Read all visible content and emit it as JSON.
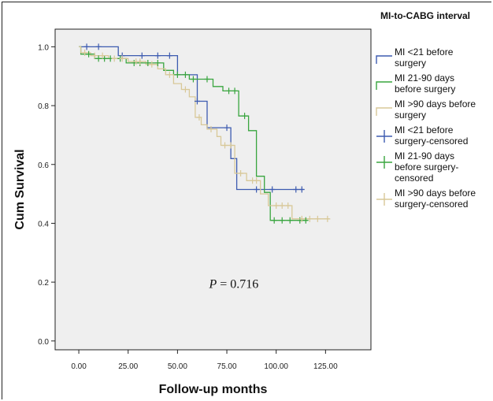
{
  "chart_data": {
    "type": "line",
    "subtype": "kaplan-meier",
    "title": "",
    "xlabel": "Follow-up months",
    "ylabel": "Cum Survival",
    "xlim": [
      -12,
      148
    ],
    "ylim": [
      -0.03,
      1.06
    ],
    "x_ticks": [
      0,
      25,
      50,
      75,
      100,
      125
    ],
    "x_tick_labels": [
      "0.00",
      "25.00",
      "50.00",
      "75.00",
      "100.00",
      "125.00"
    ],
    "y_ticks": [
      0.0,
      0.2,
      0.4,
      0.6,
      0.8,
      1.0
    ],
    "y_tick_labels": [
      "0.0",
      "0.2",
      "0.4",
      "0.6",
      "0.8",
      "1.0"
    ],
    "grid": false,
    "plot_background": "#efefef",
    "legend_title": "MI-to-CABG interval",
    "legend_position": "right",
    "annotation": {
      "prefix": "P",
      "text": " = 0.716"
    },
    "series": [
      {
        "name": "MI <21 before surgery",
        "color": "#3d5bb0",
        "steps": [
          [
            0,
            1.0
          ],
          [
            20,
            1.0
          ],
          [
            20,
            0.97
          ],
          [
            50,
            0.97
          ],
          [
            50,
            0.905
          ],
          [
            60,
            0.905
          ],
          [
            60,
            0.815
          ],
          [
            65,
            0.815
          ],
          [
            65,
            0.725
          ],
          [
            77,
            0.725
          ],
          [
            77,
            0.62
          ],
          [
            80,
            0.62
          ],
          [
            80,
            0.515
          ],
          [
            114,
            0.515
          ]
        ],
        "censored": [
          [
            4,
            1.0
          ],
          [
            10,
            1.0
          ],
          [
            22,
            0.97
          ],
          [
            32,
            0.97
          ],
          [
            40,
            0.97
          ],
          [
            46,
            0.97
          ],
          [
            60,
            0.815
          ],
          [
            75,
            0.725
          ],
          [
            90,
            0.515
          ],
          [
            98,
            0.515
          ],
          [
            110,
            0.515
          ],
          [
            113,
            0.515
          ]
        ]
      },
      {
        "name": "MI 21-90 days before surgery",
        "color": "#39a53f",
        "steps": [
          [
            0,
            1.0
          ],
          [
            1,
            1.0
          ],
          [
            1,
            0.975
          ],
          [
            8,
            0.975
          ],
          [
            8,
            0.96
          ],
          [
            24,
            0.96
          ],
          [
            24,
            0.945
          ],
          [
            43,
            0.945
          ],
          [
            43,
            0.92
          ],
          [
            48,
            0.92
          ],
          [
            48,
            0.905
          ],
          [
            56,
            0.905
          ],
          [
            56,
            0.89
          ],
          [
            68,
            0.89
          ],
          [
            68,
            0.865
          ],
          [
            73,
            0.865
          ],
          [
            73,
            0.85
          ],
          [
            81,
            0.85
          ],
          [
            81,
            0.765
          ],
          [
            86,
            0.765
          ],
          [
            86,
            0.715
          ],
          [
            90,
            0.715
          ],
          [
            90,
            0.56
          ],
          [
            94,
            0.56
          ],
          [
            94,
            0.505
          ],
          [
            97,
            0.505
          ],
          [
            97,
            0.41
          ],
          [
            116,
            0.41
          ]
        ],
        "censored": [
          [
            5,
            0.975
          ],
          [
            10,
            0.96
          ],
          [
            13,
            0.96
          ],
          [
            16,
            0.96
          ],
          [
            21,
            0.96
          ],
          [
            28,
            0.945
          ],
          [
            31,
            0.945
          ],
          [
            35,
            0.945
          ],
          [
            40,
            0.945
          ],
          [
            50,
            0.905
          ],
          [
            54,
            0.905
          ],
          [
            58,
            0.89
          ],
          [
            65,
            0.89
          ],
          [
            76,
            0.85
          ],
          [
            79,
            0.85
          ],
          [
            84,
            0.765
          ],
          [
            99,
            0.41
          ],
          [
            103,
            0.41
          ],
          [
            107,
            0.41
          ],
          [
            112,
            0.41
          ],
          [
            115,
            0.41
          ]
        ]
      },
      {
        "name": "MI >90 days before surgery",
        "color": "#d8c898",
        "steps": [
          [
            0,
            1.0
          ],
          [
            1,
            1.0
          ],
          [
            1,
            0.98
          ],
          [
            6,
            0.98
          ],
          [
            6,
            0.97
          ],
          [
            15,
            0.97
          ],
          [
            15,
            0.96
          ],
          [
            25,
            0.96
          ],
          [
            25,
            0.95
          ],
          [
            34,
            0.95
          ],
          [
            34,
            0.94
          ],
          [
            40,
            0.94
          ],
          [
            40,
            0.925
          ],
          [
            44,
            0.925
          ],
          [
            44,
            0.905
          ],
          [
            48,
            0.905
          ],
          [
            48,
            0.875
          ],
          [
            52,
            0.875
          ],
          [
            52,
            0.855
          ],
          [
            56,
            0.855
          ],
          [
            56,
            0.83
          ],
          [
            59,
            0.83
          ],
          [
            59,
            0.76
          ],
          [
            62,
            0.76
          ],
          [
            62,
            0.735
          ],
          [
            65,
            0.735
          ],
          [
            65,
            0.72
          ],
          [
            70,
            0.72
          ],
          [
            70,
            0.695
          ],
          [
            72,
            0.695
          ],
          [
            72,
            0.665
          ],
          [
            79,
            0.665
          ],
          [
            79,
            0.57
          ],
          [
            85,
            0.57
          ],
          [
            85,
            0.545
          ],
          [
            92,
            0.545
          ],
          [
            92,
            0.5
          ],
          [
            96,
            0.5
          ],
          [
            96,
            0.46
          ],
          [
            108,
            0.46
          ],
          [
            108,
            0.415
          ],
          [
            127,
            0.415
          ]
        ],
        "censored": [
          [
            3,
            0.98
          ],
          [
            8,
            0.97
          ],
          [
            12,
            0.97
          ],
          [
            18,
            0.96
          ],
          [
            22,
            0.96
          ],
          [
            29,
            0.95
          ],
          [
            31,
            0.95
          ],
          [
            37,
            0.94
          ],
          [
            46,
            0.905
          ],
          [
            54,
            0.855
          ],
          [
            61,
            0.76
          ],
          [
            67,
            0.72
          ],
          [
            74,
            0.665
          ],
          [
            77,
            0.665
          ],
          [
            82,
            0.57
          ],
          [
            88,
            0.545
          ],
          [
            90,
            0.545
          ],
          [
            100,
            0.46
          ],
          [
            103,
            0.46
          ],
          [
            106,
            0.46
          ],
          [
            113,
            0.415
          ],
          [
            117,
            0.415
          ],
          [
            121,
            0.415
          ],
          [
            126,
            0.415
          ]
        ]
      }
    ],
    "legend_entries": [
      {
        "lines": [
          "MI <21 before",
          "surgery"
        ],
        "color": "#3d5bb0",
        "marker": "line"
      },
      {
        "lines": [
          "MI 21-90 days",
          "before surgery"
        ],
        "color": "#39a53f",
        "marker": "line"
      },
      {
        "lines": [
          "MI >90 days before",
          "surgery"
        ],
        "color": "#d8c898",
        "marker": "line"
      },
      {
        "lines": [
          "MI <21 before",
          "surgery-censored"
        ],
        "color": "#3d5bb0",
        "marker": "plus"
      },
      {
        "lines": [
          "MI 21-90 days",
          "before surgery-",
          "censored"
        ],
        "color": "#39a53f",
        "marker": "plus"
      },
      {
        "lines": [
          "MI >90 days before",
          "surgery-censored"
        ],
        "color": "#d8c898",
        "marker": "plus"
      }
    ]
  }
}
